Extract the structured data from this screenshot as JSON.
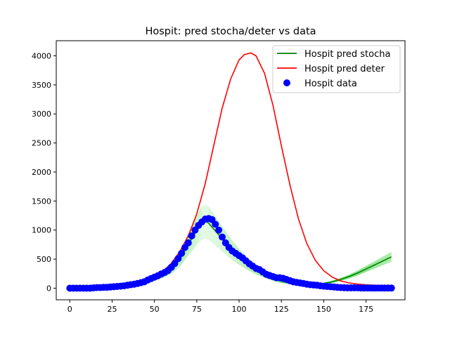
{
  "chart_data": {
    "type": "line",
    "title": "Hospit: pred stocha/deter vs data",
    "xlabel": "",
    "ylabel": "",
    "xlim": [
      -8,
      198
    ],
    "ylim": [
      -200,
      4260
    ],
    "x_ticks": [
      0,
      25,
      50,
      75,
      100,
      125,
      150,
      175
    ],
    "y_ticks": [
      0,
      500,
      1000,
      1500,
      2000,
      2500,
      3000,
      3500,
      4000
    ],
    "grid": false,
    "legend_position": "top-right",
    "series": [
      {
        "name": "Hospit pred stocha",
        "kind": "line",
        "color": "#008000",
        "x": [
          0,
          10,
          20,
          30,
          40,
          45,
          50,
          55,
          60,
          65,
          70,
          75,
          78,
          80,
          82,
          85,
          90,
          95,
          100,
          105,
          110,
          115,
          120,
          125,
          130,
          135,
          140,
          145,
          150,
          155,
          160,
          165,
          170,
          175,
          180,
          185,
          190
        ],
        "values": [
          0,
          5,
          15,
          35,
          80,
          120,
          175,
          240,
          330,
          500,
          750,
          1000,
          1120,
          1150,
          1120,
          1020,
          850,
          680,
          540,
          420,
          320,
          240,
          175,
          120,
          85,
          62,
          55,
          60,
          80,
          110,
          150,
          200,
          260,
          330,
          400,
          470,
          540
        ]
      },
      {
        "name": "Hospit pred deter",
        "kind": "line",
        "color": "#ff0000",
        "x": [
          0,
          10,
          20,
          30,
          40,
          45,
          50,
          55,
          60,
          65,
          70,
          75,
          80,
          85,
          90,
          95,
          100,
          103,
          107,
          110,
          115,
          120,
          125,
          130,
          135,
          140,
          145,
          150,
          155,
          160,
          165,
          170,
          175,
          180,
          185,
          190
        ],
        "values": [
          0,
          3,
          10,
          30,
          75,
          120,
          190,
          290,
          430,
          630,
          900,
          1280,
          1800,
          2450,
          3100,
          3600,
          3930,
          4020,
          4050,
          4000,
          3700,
          3150,
          2450,
          1780,
          1200,
          770,
          480,
          300,
          190,
          125,
          90,
          70,
          58,
          50,
          45,
          42
        ]
      },
      {
        "name": "Hospit data",
        "kind": "scatter",
        "color": "#0000ff",
        "x": [
          0,
          2,
          4,
          6,
          8,
          10,
          12,
          14,
          16,
          18,
          20,
          22,
          24,
          26,
          28,
          30,
          32,
          34,
          36,
          38,
          40,
          42,
          44,
          46,
          48,
          50,
          52,
          54,
          56,
          58,
          60,
          62,
          64,
          66,
          68,
          70,
          72,
          74,
          76,
          78,
          80,
          82,
          84,
          86,
          88,
          90,
          92,
          94,
          96,
          98,
          100,
          102,
          104,
          106,
          108,
          110,
          112,
          114,
          116,
          118,
          120,
          122,
          124,
          126,
          128,
          130,
          132,
          134,
          136,
          138,
          140,
          142,
          144,
          146,
          148,
          150,
          152,
          154,
          156,
          158,
          160,
          162,
          164,
          166,
          168,
          170,
          172,
          174,
          176,
          178,
          180,
          182,
          184,
          186,
          188,
          190
        ],
        "values": [
          0,
          0,
          0,
          0,
          0,
          0,
          0,
          5,
          10,
          10,
          15,
          15,
          20,
          25,
          30,
          35,
          40,
          50,
          60,
          70,
          80,
          95,
          110,
          140,
          165,
          190,
          215,
          245,
          270,
          305,
          360,
          425,
          510,
          600,
          700,
          780,
          900,
          1000,
          1080,
          1140,
          1190,
          1200,
          1180,
          1100,
          1000,
          880,
          780,
          700,
          640,
          600,
          560,
          520,
          470,
          420,
          380,
          340,
          320,
          280,
          240,
          220,
          200,
          180,
          180,
          170,
          150,
          130,
          110,
          100,
          90,
          80,
          70,
          60,
          55,
          50,
          40,
          35,
          30,
          25,
          20,
          15,
          10,
          8,
          5,
          5,
          5,
          5,
          3,
          3,
          3,
          2,
          2,
          2,
          2,
          2,
          2,
          2
        ]
      }
    ]
  }
}
